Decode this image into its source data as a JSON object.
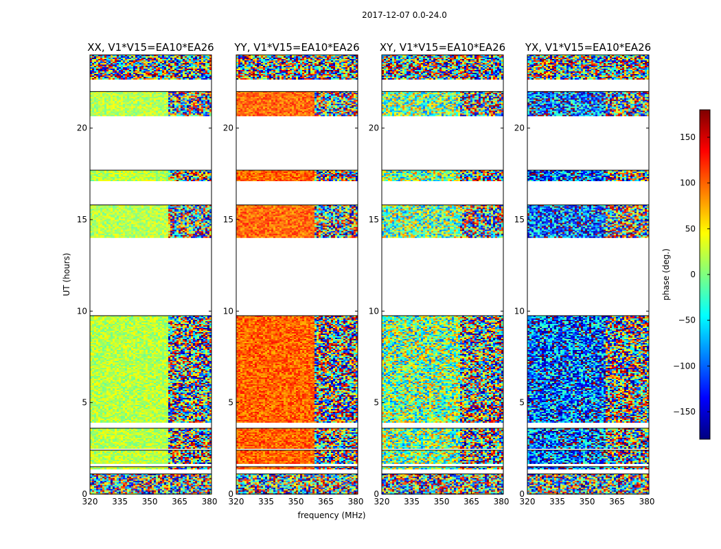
{
  "chart_data": {
    "type": "heatmap",
    "suptitle": "2017-12-07 0.0-24.0",
    "xlabel": "frequency (MHz)",
    "ylabel": "UT (hours)",
    "xlim": [
      320,
      381
    ],
    "ylim": [
      0,
      24
    ],
    "xticks": [
      "320",
      "335",
      "350",
      "365",
      "380"
    ],
    "xtick_values": [
      320,
      335,
      350,
      365,
      380
    ],
    "yticks": [
      "0",
      "5",
      "10",
      "15",
      "20"
    ],
    "ytick_values": [
      0,
      5,
      10,
      15,
      20
    ],
    "colorbar": {
      "label": "phase (deg.)",
      "range": [
        -180,
        180
      ],
      "ticks": [
        "150",
        "100",
        "50",
        "0",
        "−50",
        "−100",
        "−150"
      ],
      "tick_values": [
        150,
        100,
        50,
        0,
        -50,
        -100,
        -150
      ],
      "colormap": [
        "#00007f",
        "#0000ff",
        "#007fff",
        "#00ffff",
        "#7fff7f",
        "#ffff00",
        "#ff7f00",
        "#ff0000",
        "#7f0000"
      ]
    },
    "data_bands_ut_hours": [
      {
        "start": 0.0,
        "end": 1.1
      },
      {
        "start": 1.4,
        "end": 1.5
      },
      {
        "start": 1.7,
        "end": 2.4
      },
      {
        "start": 2.5,
        "end": 3.6
      },
      {
        "start": 3.9,
        "end": 9.75
      },
      {
        "start": 14.0,
        "end": 15.8
      },
      {
        "start": 17.1,
        "end": 17.7
      },
      {
        "start": 20.7,
        "end": 22.0
      },
      {
        "start": 22.7,
        "end": 24.0
      }
    ],
    "panels": [
      {
        "title": "XX, V1*V15=EA10*EA26",
        "baseline_phase_deg": 20,
        "noise": "low"
      },
      {
        "title": "YY, V1*V15=EA10*EA26",
        "baseline_phase_deg": 100,
        "noise": "low"
      },
      {
        "title": "XY, V1*V15=EA10*EA26",
        "baseline_phase_deg": 0,
        "noise": "high"
      },
      {
        "title": "YX, V1*V15=EA10*EA26",
        "baseline_phase_deg": -100,
        "noise": "high"
      }
    ]
  }
}
